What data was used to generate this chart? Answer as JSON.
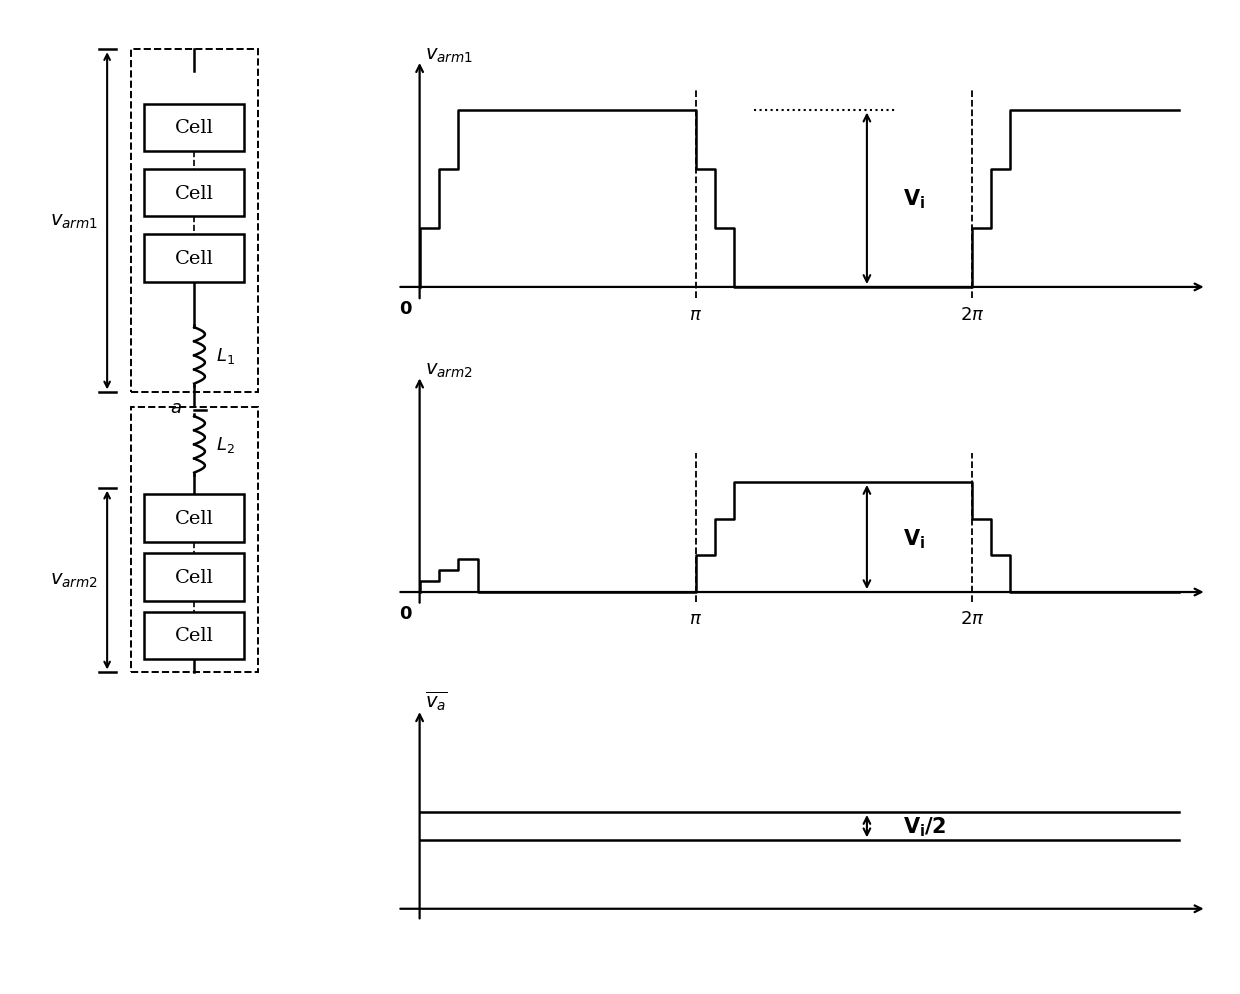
{
  "bg_color": "#ffffff",
  "cell_text": "Cell",
  "arm1_label": "$\\mathbf{\\it{v}}_{\\mathbf{\\it{arm1}}}$",
  "arm2_label": "$\\mathbf{\\it{v}}_{\\mathbf{\\it{arm2}}}$",
  "L1_label": "$L_1$",
  "L2_label": "$L_2$",
  "a_label": "$a$",
  "plot1_ylabel": "$\\boldsymbol{v}_{\\boldsymbol{arm1}}$",
  "plot2_ylabel": "$\\boldsymbol{v}_{\\boldsymbol{arm2}}$",
  "plot3_ylabel": "$\\overline{v_a}$",
  "xlabel_pi": "$\\pi$",
  "xlabel_2pi": "$2\\pi$",
  "Vi_label": "$\\mathbf{V_i}$",
  "Vi2_label": "$\\mathbf{V_i/2}$",
  "zero_label": "$\\mathbf{0}$",
  "signal_high": 1.0,
  "arm2_high": 0.65,
  "flat_line_upper": 0.62,
  "flat_line_lower": 0.44,
  "lw": 1.8,
  "lw_thin": 1.2
}
